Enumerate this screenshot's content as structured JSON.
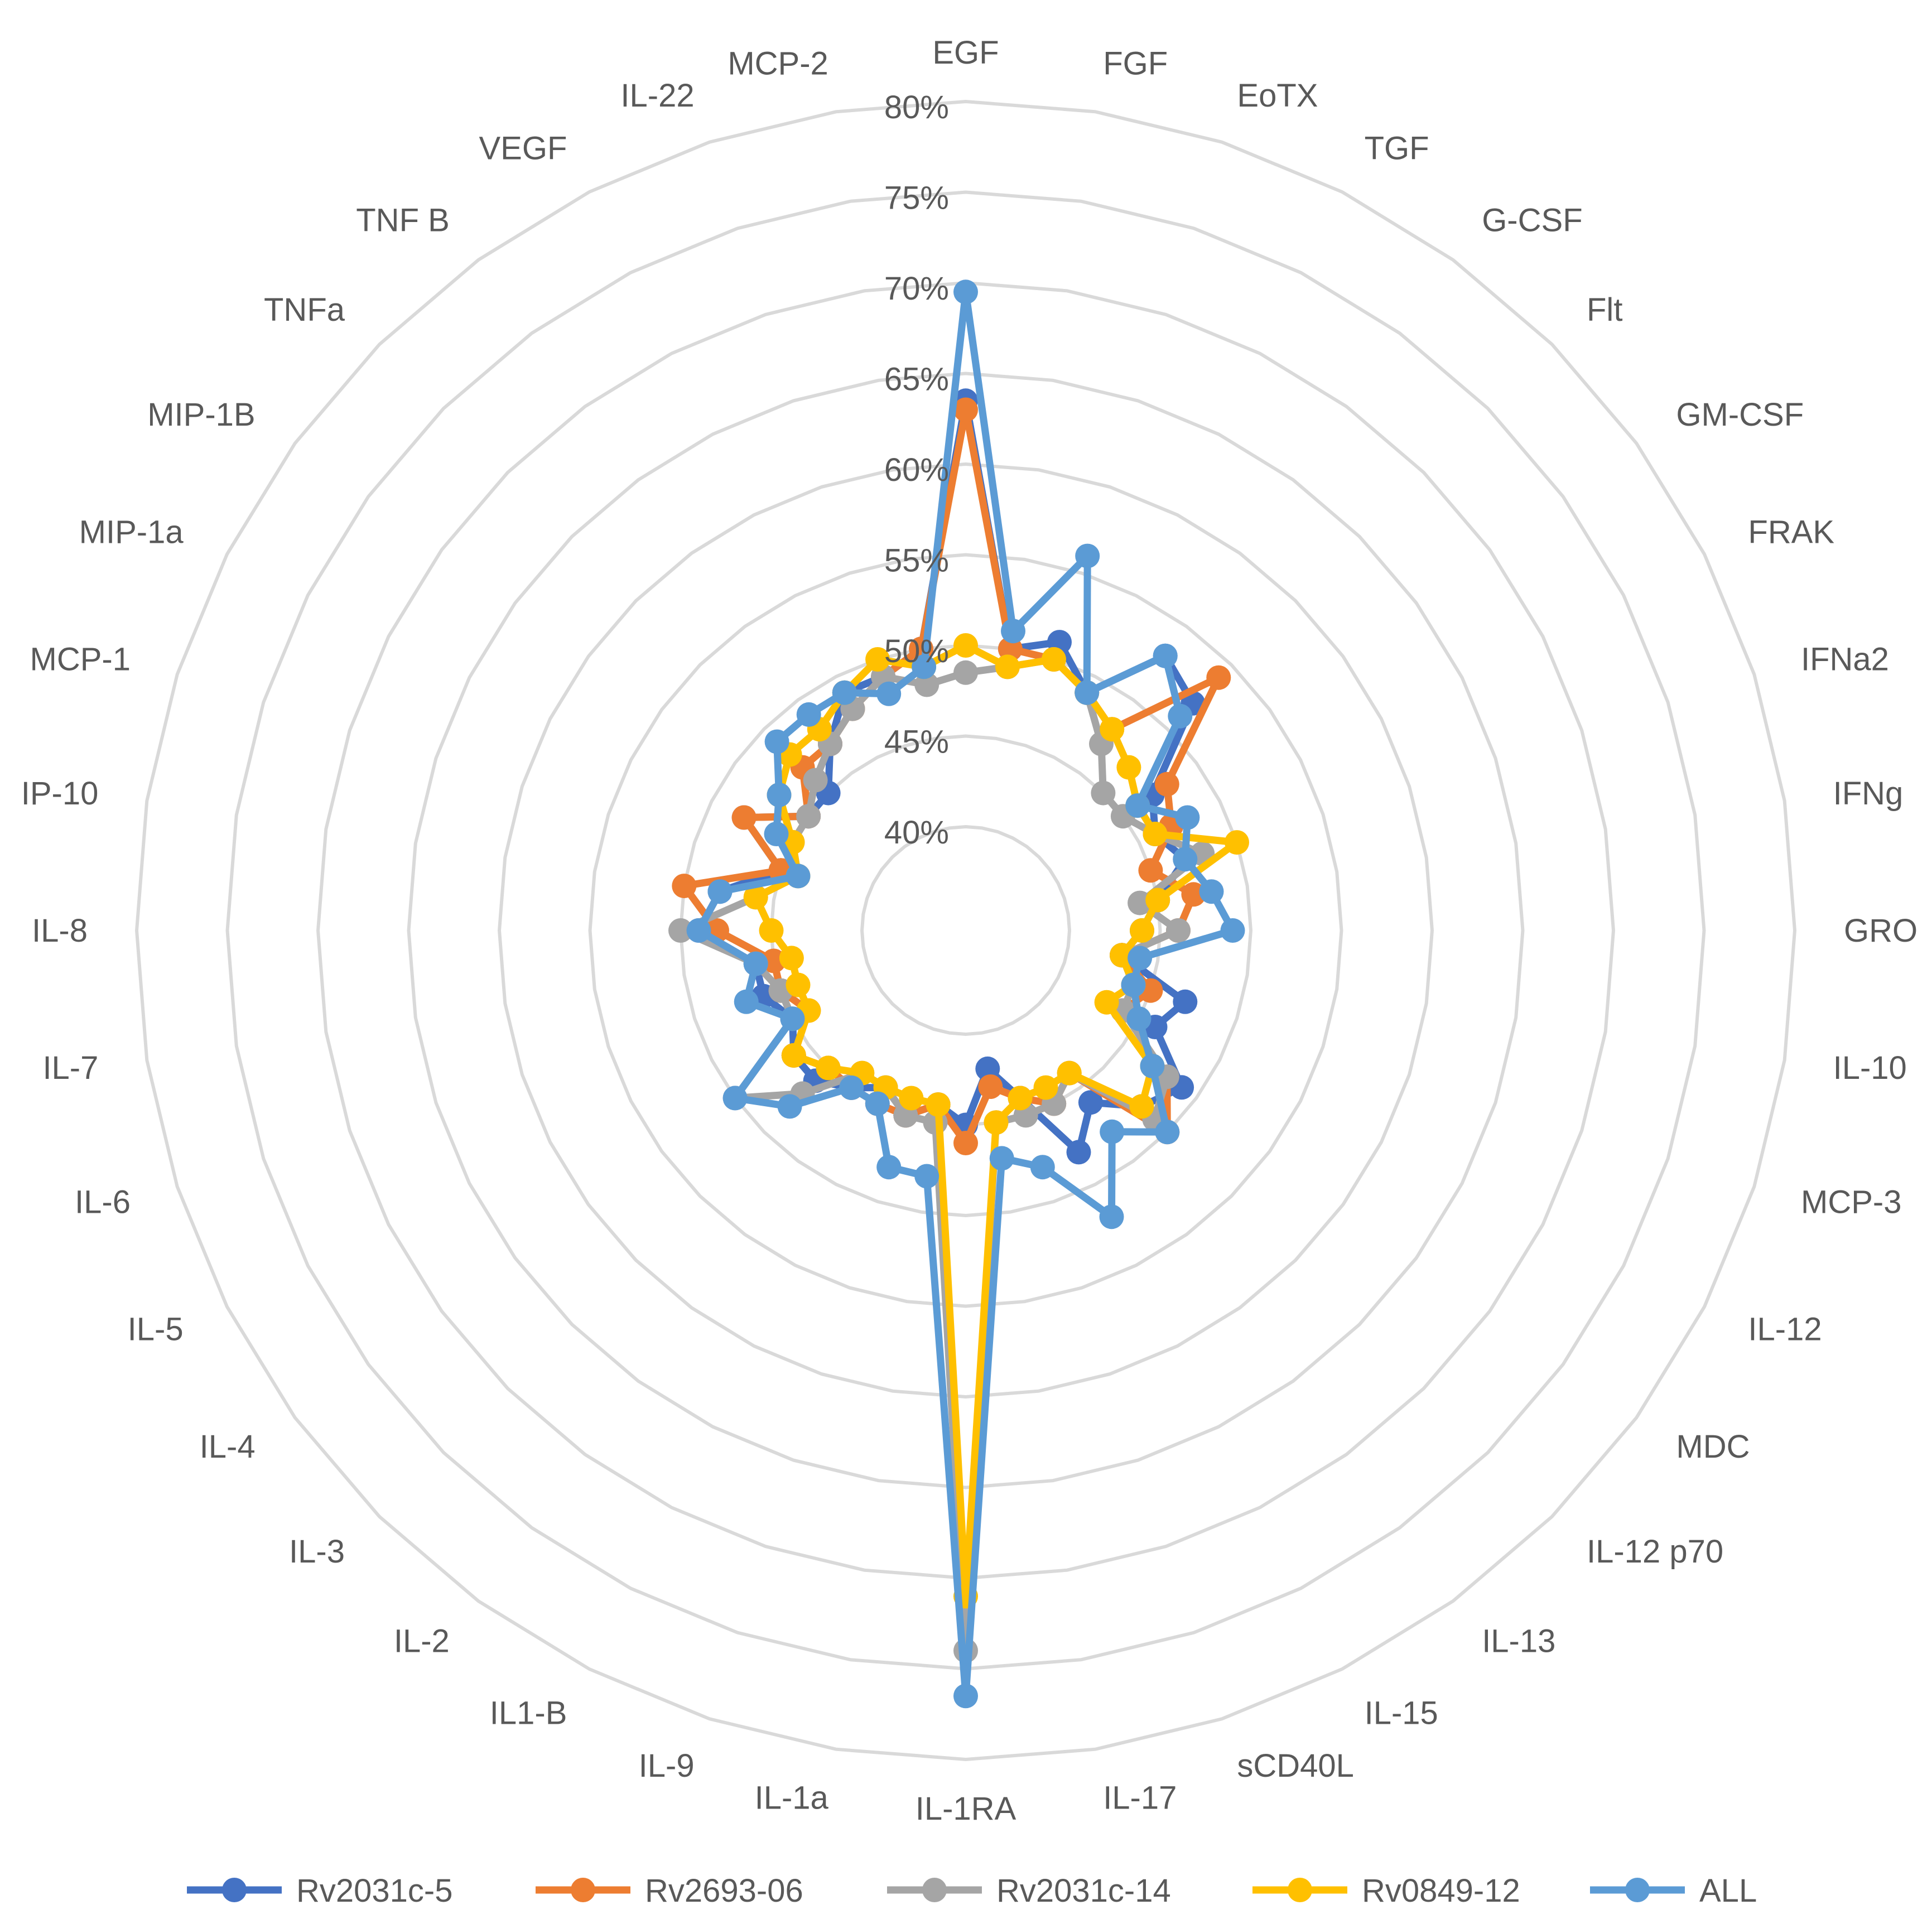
{
  "chart_data": {
    "type": "radar",
    "title": "",
    "categories": [
      "EGF",
      "FGF",
      "EoTX",
      "TGF",
      "G-CSF",
      "Flt",
      "GM-CSF",
      "FRAK",
      "IFNa2",
      "IFNg",
      "GRO",
      "IL-10",
      "MCP-3",
      "IL-12",
      "MDC",
      "IL-12 p70",
      "IL-13",
      "IL-15",
      "sCD40L",
      "IL-17",
      "IL-1RA",
      "IL-1a",
      "IL-9",
      "IL1-B",
      "IL-2",
      "IL-3",
      "IL-4",
      "IL-5",
      "IL-6",
      "IL-7",
      "IL-8",
      "IP-10",
      "MCP-1",
      "MIP-1a",
      "MIP-1B",
      "TNFa",
      "TNF B",
      "VEGF",
      "IL-22",
      "MCP-2"
    ],
    "rlim": [
      40,
      80
    ],
    "ticks": [
      40,
      45,
      50,
      55,
      60,
      65,
      70,
      75,
      80
    ],
    "tick_labels": [
      "40%",
      "45%",
      "50%",
      "55%",
      "60%",
      "65%",
      "70%",
      "75%",
      "80%"
    ],
    "grid": true,
    "legend_position": "bottom",
    "series": [
      {
        "name": "Rv2031c-5",
        "color": "#4472C4",
        "values": [
          63.5,
          50,
          51,
          49,
          53,
          52,
          47,
          46,
          47,
          45,
          44,
          43,
          47,
          46,
          49,
          48,
          46,
          48,
          44,
          42,
          45,
          44,
          45,
          44,
          45,
          46,
          46,
          45,
          46,
          46,
          49,
          48,
          45,
          48,
          45,
          45,
          47,
          49,
          49,
          50
        ]
      },
      {
        "name": "Rv2693-06",
        "color": "#ED7D31",
        "values": [
          63,
          50,
          50,
          49,
          48,
          54,
          48,
          47,
          45,
          47,
          46,
          43,
          45,
          44,
          48,
          50,
          44,
          45,
          44,
          43,
          46,
          44,
          45,
          45,
          45,
          45,
          46,
          44,
          45,
          45,
          48,
          50,
          45,
          48,
          45,
          47,
          47,
          48,
          49,
          50
        ]
      },
      {
        "name": "Rv2031c-14",
        "color": "#A5A5A5",
        "values": [
          48.5,
          49,
          50,
          49,
          47,
          45,
          45,
          46,
          48,
          44,
          46,
          43,
          44,
          44,
          48,
          49,
          44,
          45,
          45,
          45,
          74,
          45,
          45,
          44,
          44,
          47,
          50,
          45,
          45,
          46,
          50,
          46,
          44,
          45,
          45,
          46,
          47,
          48,
          49,
          48
        ]
      },
      {
        "name": "Rv0849-12",
        "color": "#FFC000",
        "values": [
          50,
          49,
          50,
          49,
          48,
          47,
          46,
          46,
          50,
          45,
          44,
          43,
          44,
          43,
          47,
          48,
          44,
          44,
          44,
          45,
          71,
          44,
          44,
          44,
          44,
          45,
          46,
          44,
          44,
          44,
          45,
          46,
          44,
          45,
          47,
          48,
          48,
          49,
          50,
          49
        ]
      },
      {
        "name": "ALL",
        "color": "#5B9BD5",
        "values": [
          69.5,
          51,
          56,
          49,
          53,
          51,
          46,
          48,
          47,
          48,
          49,
          44,
          44,
          45,
          47,
          50,
          48,
          52,
          48,
          47,
          76.5,
          48,
          48,
          45,
          45,
          48,
          50,
          45,
          47,
          46,
          49,
          48,
          44,
          46,
          47,
          49,
          49,
          49,
          48,
          49
        ]
      }
    ]
  }
}
